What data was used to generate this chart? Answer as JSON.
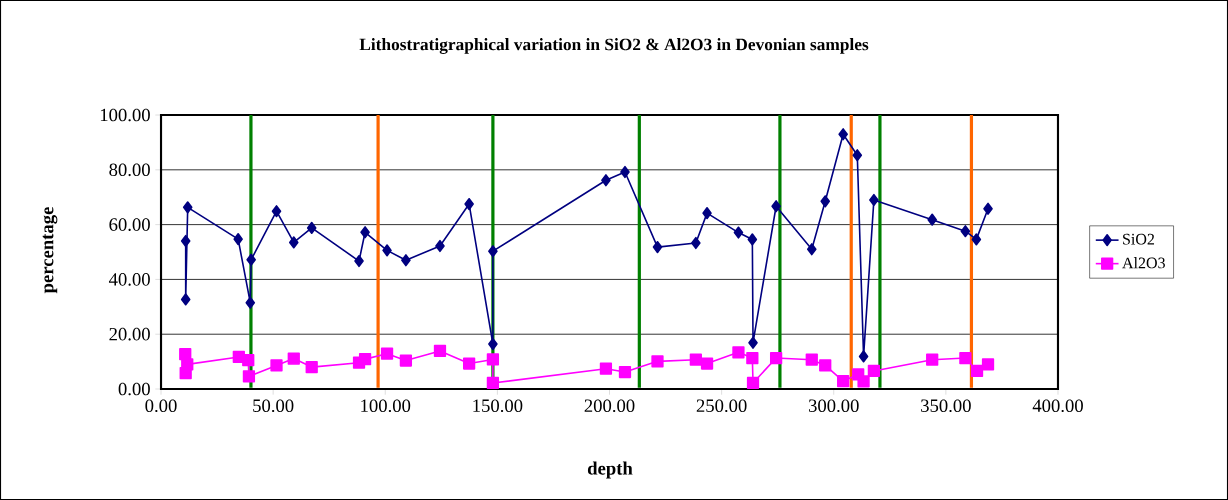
{
  "chart_data": {
    "type": "line",
    "title": "Lithostratigraphical variation in SiO2 & Al2O3 in Devonian samples",
    "xlabel": "depth",
    "ylabel": "percentage",
    "series": [
      {
        "name": "SiO2",
        "color": "#000080",
        "marker": "diamond",
        "x": [
          11.0,
          11.0,
          11.9,
          34.4,
          39.8,
          40.2,
          51.5,
          59.2,
          67.2,
          88.3,
          91.0,
          100.8,
          109.2,
          124.4,
          137.4,
          148.0,
          148.0,
          198.4,
          206.9,
          221.4,
          238.5,
          243.5,
          257.5,
          263.7,
          264.0,
          274.3,
          290.2,
          296.2,
          304.2,
          310.5,
          313.3,
          317.9,
          343.9,
          358.7,
          363.6,
          368.8
        ],
        "values": [
          54.0,
          32.7,
          66.3,
          54.7,
          31.5,
          47.2,
          64.9,
          53.5,
          58.8,
          46.7,
          57.2,
          50.6,
          47.0,
          52.2,
          67.5,
          16.4,
          50.3,
          76.2,
          79.2,
          51.8,
          53.3,
          64.2,
          57.1,
          54.6,
          16.9,
          66.7,
          51.0,
          68.5,
          93.0,
          85.3,
          11.9,
          69.0,
          61.8,
          57.6,
          54.6,
          65.8
        ]
      },
      {
        "name": "Al2O3",
        "color": "#ff00ff",
        "marker": "square",
        "x": [
          10.8,
          11.0,
          11.7,
          34.7,
          38.9,
          39.2,
          51.5,
          59.2,
          67.2,
          88.3,
          91.0,
          100.8,
          109.2,
          124.4,
          137.4,
          148.0,
          148.0,
          198.4,
          206.9,
          221.4,
          238.5,
          243.5,
          257.5,
          263.7,
          264.0,
          274.3,
          290.2,
          296.2,
          304.2,
          310.9,
          313.3,
          317.9,
          343.9,
          358.7,
          363.9,
          368.8
        ],
        "values": [
          12.7,
          5.8,
          9.0,
          11.7,
          10.5,
          4.6,
          8.6,
          11.1,
          8.0,
          9.6,
          10.9,
          12.9,
          10.4,
          13.9,
          9.3,
          10.8,
          2.2,
          7.4,
          6.2,
          10.1,
          10.7,
          9.3,
          13.4,
          11.3,
          2.2,
          11.3,
          10.7,
          8.6,
          2.9,
          5.3,
          2.8,
          6.6,
          10.7,
          11.3,
          6.6,
          9.0
        ]
      }
    ],
    "xlim": [
      0,
      400
    ],
    "ylim": [
      0,
      100
    ],
    "xticks": [
      {
        "value": 0,
        "label": "0.00"
      },
      {
        "value": 50,
        "label": "50.00"
      },
      {
        "value": 100,
        "label": "100.00"
      },
      {
        "value": 150,
        "label": "150.00"
      },
      {
        "value": 200,
        "label": "200.00"
      },
      {
        "value": 250,
        "label": "250.00"
      },
      {
        "value": 300,
        "label": "300.00"
      },
      {
        "value": 350,
        "label": "350.00"
      },
      {
        "value": 400,
        "label": "400.00"
      }
    ],
    "yticks": [
      {
        "value": 0,
        "label": "0.00"
      },
      {
        "value": 20,
        "label": "20.00"
      },
      {
        "value": 40,
        "label": "40.00"
      },
      {
        "value": 60,
        "label": "60.00"
      },
      {
        "value": 80,
        "label": "80.00"
      },
      {
        "value": 100,
        "label": "100.00"
      }
    ],
    "grid": "y",
    "legend": "right",
    "line_style": "solid",
    "ref_lines": [
      {
        "axis": "x",
        "value": 40.1,
        "color": "#008000"
      },
      {
        "axis": "x",
        "value": 96.8,
        "color": "#ff6600"
      },
      {
        "axis": "x",
        "value": 148.0,
        "color": "#008000"
      },
      {
        "axis": "x",
        "value": 213.3,
        "color": "#008000"
      },
      {
        "axis": "x",
        "value": 276.0,
        "color": "#008000"
      },
      {
        "axis": "x",
        "value": 307.8,
        "color": "#ff6600"
      },
      {
        "axis": "x",
        "value": 320.6,
        "color": "#008000"
      },
      {
        "axis": "x",
        "value": 361.4,
        "color": "#ff6600"
      }
    ]
  }
}
